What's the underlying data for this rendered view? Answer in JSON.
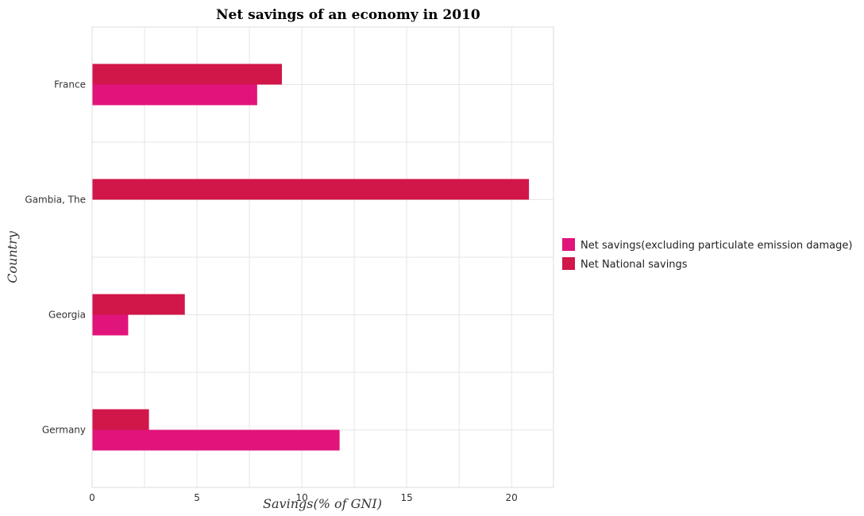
{
  "chart_data": {
    "type": "bar",
    "orientation": "horizontal",
    "title": "Net savings of an economy in 2010",
    "xlabel": "Savings(% of GNI)",
    "ylabel": "Country",
    "categories": [
      "France",
      "Gambia, The",
      "Georgia",
      "Germany"
    ],
    "series": [
      {
        "name": "Net savings(excluding particulate emission damage)",
        "color": "#e0147a",
        "values": [
          7.87,
          0,
          1.72,
          11.8
        ]
      },
      {
        "name": "Net National savings",
        "color": "#d1164a",
        "values": [
          9.05,
          20.83,
          4.42,
          2.71
        ]
      }
    ],
    "xlim": [
      0,
      22
    ],
    "xticks": [
      0,
      5,
      10,
      15,
      20
    ],
    "grid": true,
    "legend_position": "right"
  }
}
